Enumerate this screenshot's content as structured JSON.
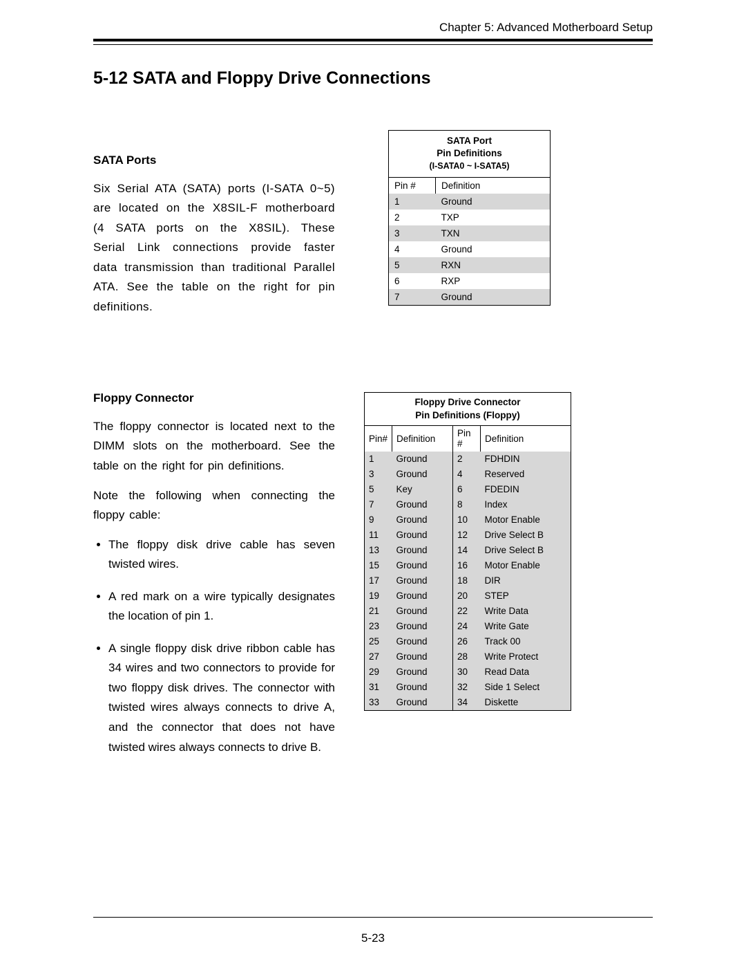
{
  "chapter": "Chapter 5: Advanced Motherboard Setup",
  "section_title": "5-12  SATA and Floppy Drive Connections",
  "page_number": "5-23",
  "sata": {
    "heading": "SATA Ports",
    "paragraph": "Six Serial ATA (SATA) ports (I-SATA 0~5) are located on the X8SIL-F motherboard (4 SATA ports on the X8SIL). These Serial Link connections provide faster data transmission than traditional Parallel ATA. See the table on the right for pin definitions.",
    "table": {
      "title_lines": [
        "SATA Port",
        "Pin Definitions",
        "(I-SATA0 ~ I-SATA5)"
      ],
      "col_headers": [
        "Pin #",
        "Definition"
      ],
      "rows": [
        {
          "pin": "1",
          "def": "Ground"
        },
        {
          "pin": "2",
          "def": "TXP"
        },
        {
          "pin": "3",
          "def": "TXN"
        },
        {
          "pin": "4",
          "def": "Ground"
        },
        {
          "pin": "5",
          "def": "RXN"
        },
        {
          "pin": "6",
          "def": "RXP"
        },
        {
          "pin": "7",
          "def": "Ground"
        }
      ],
      "shade_color": "#d7d7d7",
      "border_color": "#000000",
      "font_size": 13.5
    }
  },
  "floppy": {
    "heading": "Floppy Connector",
    "paragraph1": "The floppy connector is located next to the DIMM slots on the motherboard. See the table on the right for pin definitions.",
    "paragraph2": "Note the following when connecting the floppy cable:",
    "bullets": [
      "The floppy disk drive cable has seven twisted wires.",
      "A red mark on a wire typically designates the location of pin 1.",
      "A single floppy disk drive ribbon cable has 34 wires and two connectors to provide for two floppy disk drives. The connector with twisted wires always connects to drive A, and the connector that does not have twisted wires always connects to drive B."
    ],
    "table": {
      "title_lines": [
        "Floppy Drive Connector",
        "Pin Definitions (Floppy)"
      ],
      "col_headers": [
        "Pin#",
        "Definition",
        "Pin #",
        "Definition"
      ],
      "rows": [
        {
          "p1": "1",
          "d1": "Ground",
          "p2": "2",
          "d2": "FDHDIN"
        },
        {
          "p1": "3",
          "d1": "Ground",
          "p2": "4",
          "d2": "Reserved"
        },
        {
          "p1": "5",
          "d1": "Key",
          "p2": "6",
          "d2": "FDEDIN"
        },
        {
          "p1": "7",
          "d1": "Ground",
          "p2": "8",
          "d2": "Index"
        },
        {
          "p1": "9",
          "d1": "Ground",
          "p2": "10",
          "d2": "Motor Enable"
        },
        {
          "p1": "11",
          "d1": "Ground",
          "p2": "12",
          "d2": "Drive Select B"
        },
        {
          "p1": "13",
          "d1": "Ground",
          "p2": "14",
          "d2": "Drive Select B"
        },
        {
          "p1": "15",
          "d1": "Ground",
          "p2": "16",
          "d2": "Motor Enable"
        },
        {
          "p1": "17",
          "d1": "Ground",
          "p2": "18",
          "d2": "DIR"
        },
        {
          "p1": "19",
          "d1": "Ground",
          "p2": "20",
          "d2": "STEP"
        },
        {
          "p1": "21",
          "d1": "Ground",
          "p2": "22",
          "d2": "Write Data"
        },
        {
          "p1": "23",
          "d1": "Ground",
          "p2": "24",
          "d2": "Write Gate"
        },
        {
          "p1": "25",
          "d1": "Ground",
          "p2": "26",
          "d2": "Track 00"
        },
        {
          "p1": "27",
          "d1": "Ground",
          "p2": "28",
          "d2": "Write Protect"
        },
        {
          "p1": "29",
          "d1": "Ground",
          "p2": "30",
          "d2": "Read Data"
        },
        {
          "p1": "31",
          "d1": "Ground",
          "p2": "32",
          "d2": "Side 1 Select"
        },
        {
          "p1": "33",
          "d1": "Ground",
          "p2": "34",
          "d2": "Diskette"
        }
      ],
      "shade_color": "#d7d7d7",
      "border_color": "#000000",
      "font_size": 13.5
    }
  }
}
